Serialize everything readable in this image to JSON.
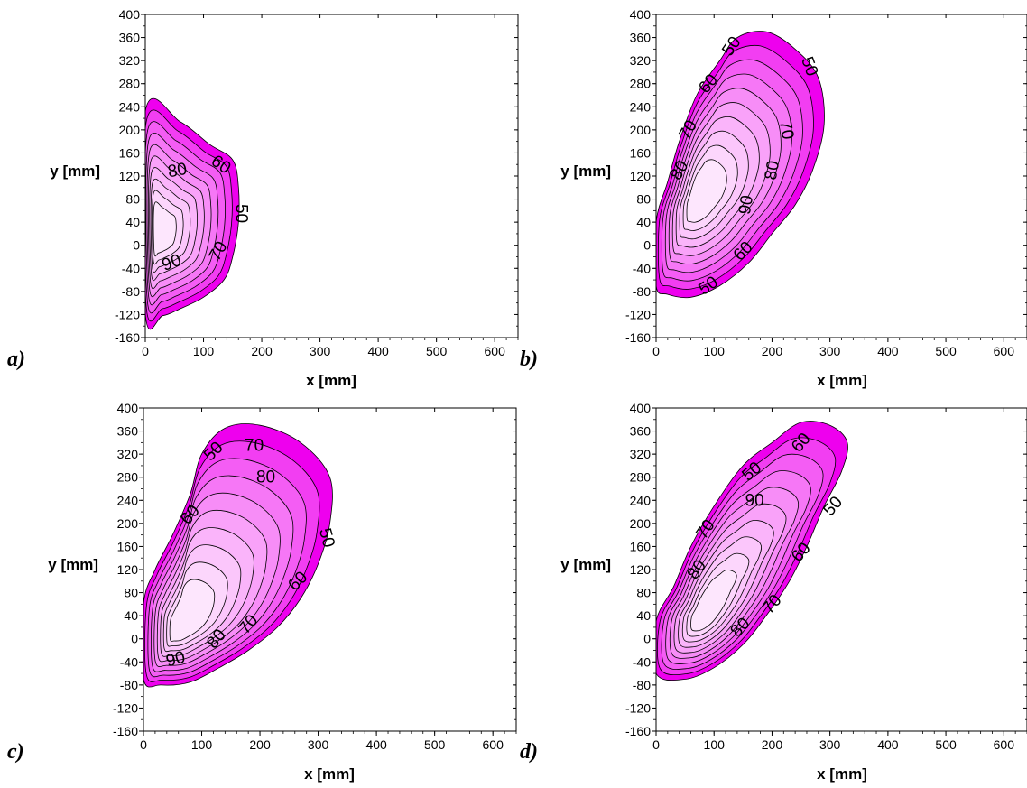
{
  "chart_data": [
    {
      "type": "contour",
      "panel_label": "a)",
      "xlabel": "x [mm]",
      "ylabel": "y [mm]",
      "xlim": [
        0,
        640
      ],
      "ylim": [
        -160,
        400
      ],
      "xticks": [
        "0",
        "100",
        "200",
        "300",
        "400",
        "500",
        "600"
      ],
      "yticks": [
        "400",
        "360",
        "320",
        "280",
        "240",
        "200",
        "160",
        "120",
        "80",
        "40",
        "0",
        "-40",
        "-80",
        "-120",
        "-160"
      ],
      "level_step": 5,
      "fill_outer_color": "#ee00ee",
      "fill_inner_color": "#fde6fd",
      "region_outline": [
        [
          0,
          232
        ],
        [
          60,
          214
        ],
        [
          110,
          175
        ],
        [
          150,
          148
        ],
        [
          160,
          100
        ],
        [
          160,
          40
        ],
        [
          150,
          -20
        ],
        [
          135,
          -60
        ],
        [
          100,
          -90
        ],
        [
          60,
          -110
        ],
        [
          30,
          -122
        ],
        [
          0,
          -118
        ]
      ],
      "core_center": [
        20,
        20
      ],
      "contour_labels": [
        {
          "text": "80",
          "x": 55,
          "y": 130,
          "angle": -10
        },
        {
          "text": "60",
          "x": 130,
          "y": 140,
          "angle": 35
        },
        {
          "text": "50",
          "x": 165,
          "y": 55,
          "angle": 90
        },
        {
          "text": "70",
          "x": 125,
          "y": -10,
          "angle": -60
        },
        {
          "text": "90",
          "x": 45,
          "y": -30,
          "angle": -20
        }
      ]
    },
    {
      "type": "contour",
      "panel_label": "b)",
      "xlabel": "x [mm]",
      "ylabel": "y [mm]",
      "xlim": [
        0,
        640
      ],
      "ylim": [
        -160,
        400
      ],
      "xticks": [
        "0",
        "100",
        "200",
        "300",
        "400",
        "500",
        "600"
      ],
      "yticks": [
        "400",
        "360",
        "320",
        "280",
        "240",
        "200",
        "160",
        "120",
        "80",
        "40",
        "0",
        "-40",
        "-80",
        "-120",
        "-160"
      ],
      "level_step": 5,
      "fill_outer_color": "#ee00ee",
      "fill_inner_color": "#fde6fd",
      "region_outline": [
        [
          0,
          40
        ],
        [
          20,
          110
        ],
        [
          40,
          180
        ],
        [
          70,
          260
        ],
        [
          110,
          320
        ],
        [
          140,
          360
        ],
        [
          190,
          370
        ],
        [
          240,
          340
        ],
        [
          280,
          290
        ],
        [
          290,
          210
        ],
        [
          270,
          130
        ],
        [
          240,
          70
        ],
        [
          200,
          20
        ],
        [
          160,
          -30
        ],
        [
          110,
          -70
        ],
        [
          60,
          -90
        ],
        [
          20,
          -85
        ],
        [
          0,
          -70
        ]
      ],
      "core_center": [
        70,
        80
      ],
      "contour_labels": [
        {
          "text": "50",
          "x": 130,
          "y": 345,
          "angle": -55
        },
        {
          "text": "50",
          "x": 265,
          "y": 310,
          "angle": 70
        },
        {
          "text": "60",
          "x": 90,
          "y": 280,
          "angle": -50
        },
        {
          "text": "70",
          "x": 55,
          "y": 200,
          "angle": -60
        },
        {
          "text": "70",
          "x": 225,
          "y": 200,
          "angle": 80
        },
        {
          "text": "80",
          "x": 40,
          "y": 130,
          "angle": -60
        },
        {
          "text": "80",
          "x": 200,
          "y": 130,
          "angle": -80
        },
        {
          "text": "90",
          "x": 155,
          "y": 70,
          "angle": -80
        },
        {
          "text": "60",
          "x": 150,
          "y": -10,
          "angle": -45
        },
        {
          "text": "50",
          "x": 90,
          "y": -70,
          "angle": -35
        }
      ]
    },
    {
      "type": "contour",
      "panel_label": "c)",
      "xlabel": "x [mm]",
      "ylabel": "y [mm]",
      "xlim": [
        0,
        640
      ],
      "ylim": [
        -160,
        400
      ],
      "xticks": [
        "0",
        "100",
        "200",
        "300",
        "400",
        "500",
        "600"
      ],
      "yticks": [
        "400",
        "360",
        "320",
        "280",
        "240",
        "200",
        "160",
        "120",
        "80",
        "40",
        "0",
        "-40",
        "-80",
        "-120",
        "-160"
      ],
      "level_step": 5,
      "fill_outer_color": "#ee00ee",
      "fill_inner_color": "#fde6fd",
      "region_outline": [
        [
          0,
          60
        ],
        [
          20,
          120
        ],
        [
          50,
          180
        ],
        [
          80,
          250
        ],
        [
          100,
          320
        ],
        [
          140,
          365
        ],
        [
          200,
          370
        ],
        [
          270,
          340
        ],
        [
          320,
          280
        ],
        [
          320,
          200
        ],
        [
          300,
          130
        ],
        [
          270,
          70
        ],
        [
          230,
          20
        ],
        [
          180,
          -20
        ],
        [
          130,
          -50
        ],
        [
          80,
          -75
        ],
        [
          30,
          -80
        ],
        [
          0,
          -70
        ]
      ],
      "core_center": [
        60,
        20
      ],
      "contour_labels": [
        {
          "text": "50",
          "x": 120,
          "y": 325,
          "angle": -45
        },
        {
          "text": "70",
          "x": 190,
          "y": 335,
          "angle": 0
        },
        {
          "text": "80",
          "x": 210,
          "y": 280,
          "angle": 0
        },
        {
          "text": "60",
          "x": 80,
          "y": 215,
          "angle": -50
        },
        {
          "text": "50",
          "x": 315,
          "y": 175,
          "angle": 75
        },
        {
          "text": "60",
          "x": 265,
          "y": 100,
          "angle": -45
        },
        {
          "text": "70",
          "x": 180,
          "y": 25,
          "angle": -50
        },
        {
          "text": "80",
          "x": 125,
          "y": 0,
          "angle": -50
        },
        {
          "text": "90",
          "x": 55,
          "y": -35,
          "angle": -15
        }
      ]
    },
    {
      "type": "contour",
      "panel_label": "d)",
      "xlabel": "x [mm]",
      "ylabel": "y [mm]",
      "xlim": [
        0,
        640
      ],
      "ylim": [
        -160,
        400
      ],
      "xticks": [
        "0",
        "100",
        "200",
        "300",
        "400",
        "500",
        "600"
      ],
      "yticks": [
        "400",
        "360",
        "320",
        "280",
        "240",
        "200",
        "160",
        "120",
        "80",
        "40",
        "0",
        "-40",
        "-80",
        "-120",
        "-160"
      ],
      "level_step": 5,
      "fill_outer_color": "#ee00ee",
      "fill_inner_color": "#fde6fd",
      "region_outline": [
        [
          0,
          30
        ],
        [
          30,
          90
        ],
        [
          60,
          160
        ],
        [
          100,
          230
        ],
        [
          150,
          300
        ],
        [
          200,
          340
        ],
        [
          250,
          375
        ],
        [
          300,
          370
        ],
        [
          330,
          340
        ],
        [
          320,
          290
        ],
        [
          290,
          230
        ],
        [
          260,
          160
        ],
        [
          230,
          100
        ],
        [
          190,
          40
        ],
        [
          150,
          -10
        ],
        [
          100,
          -50
        ],
        [
          50,
          -70
        ],
        [
          0,
          -60
        ]
      ],
      "core_center": [
        80,
        40
      ],
      "contour_labels": [
        {
          "text": "60",
          "x": 250,
          "y": 340,
          "angle": -50
        },
        {
          "text": "50",
          "x": 165,
          "y": 290,
          "angle": -40
        },
        {
          "text": "90",
          "x": 170,
          "y": 240,
          "angle": 0
        },
        {
          "text": "50",
          "x": 305,
          "y": 230,
          "angle": -50
        },
        {
          "text": "70",
          "x": 85,
          "y": 190,
          "angle": -55
        },
        {
          "text": "60",
          "x": 250,
          "y": 150,
          "angle": -50
        },
        {
          "text": "80",
          "x": 70,
          "y": 120,
          "angle": -55
        },
        {
          "text": "70",
          "x": 200,
          "y": 60,
          "angle": -50
        },
        {
          "text": "80",
          "x": 145,
          "y": 20,
          "angle": -45
        }
      ]
    }
  ]
}
